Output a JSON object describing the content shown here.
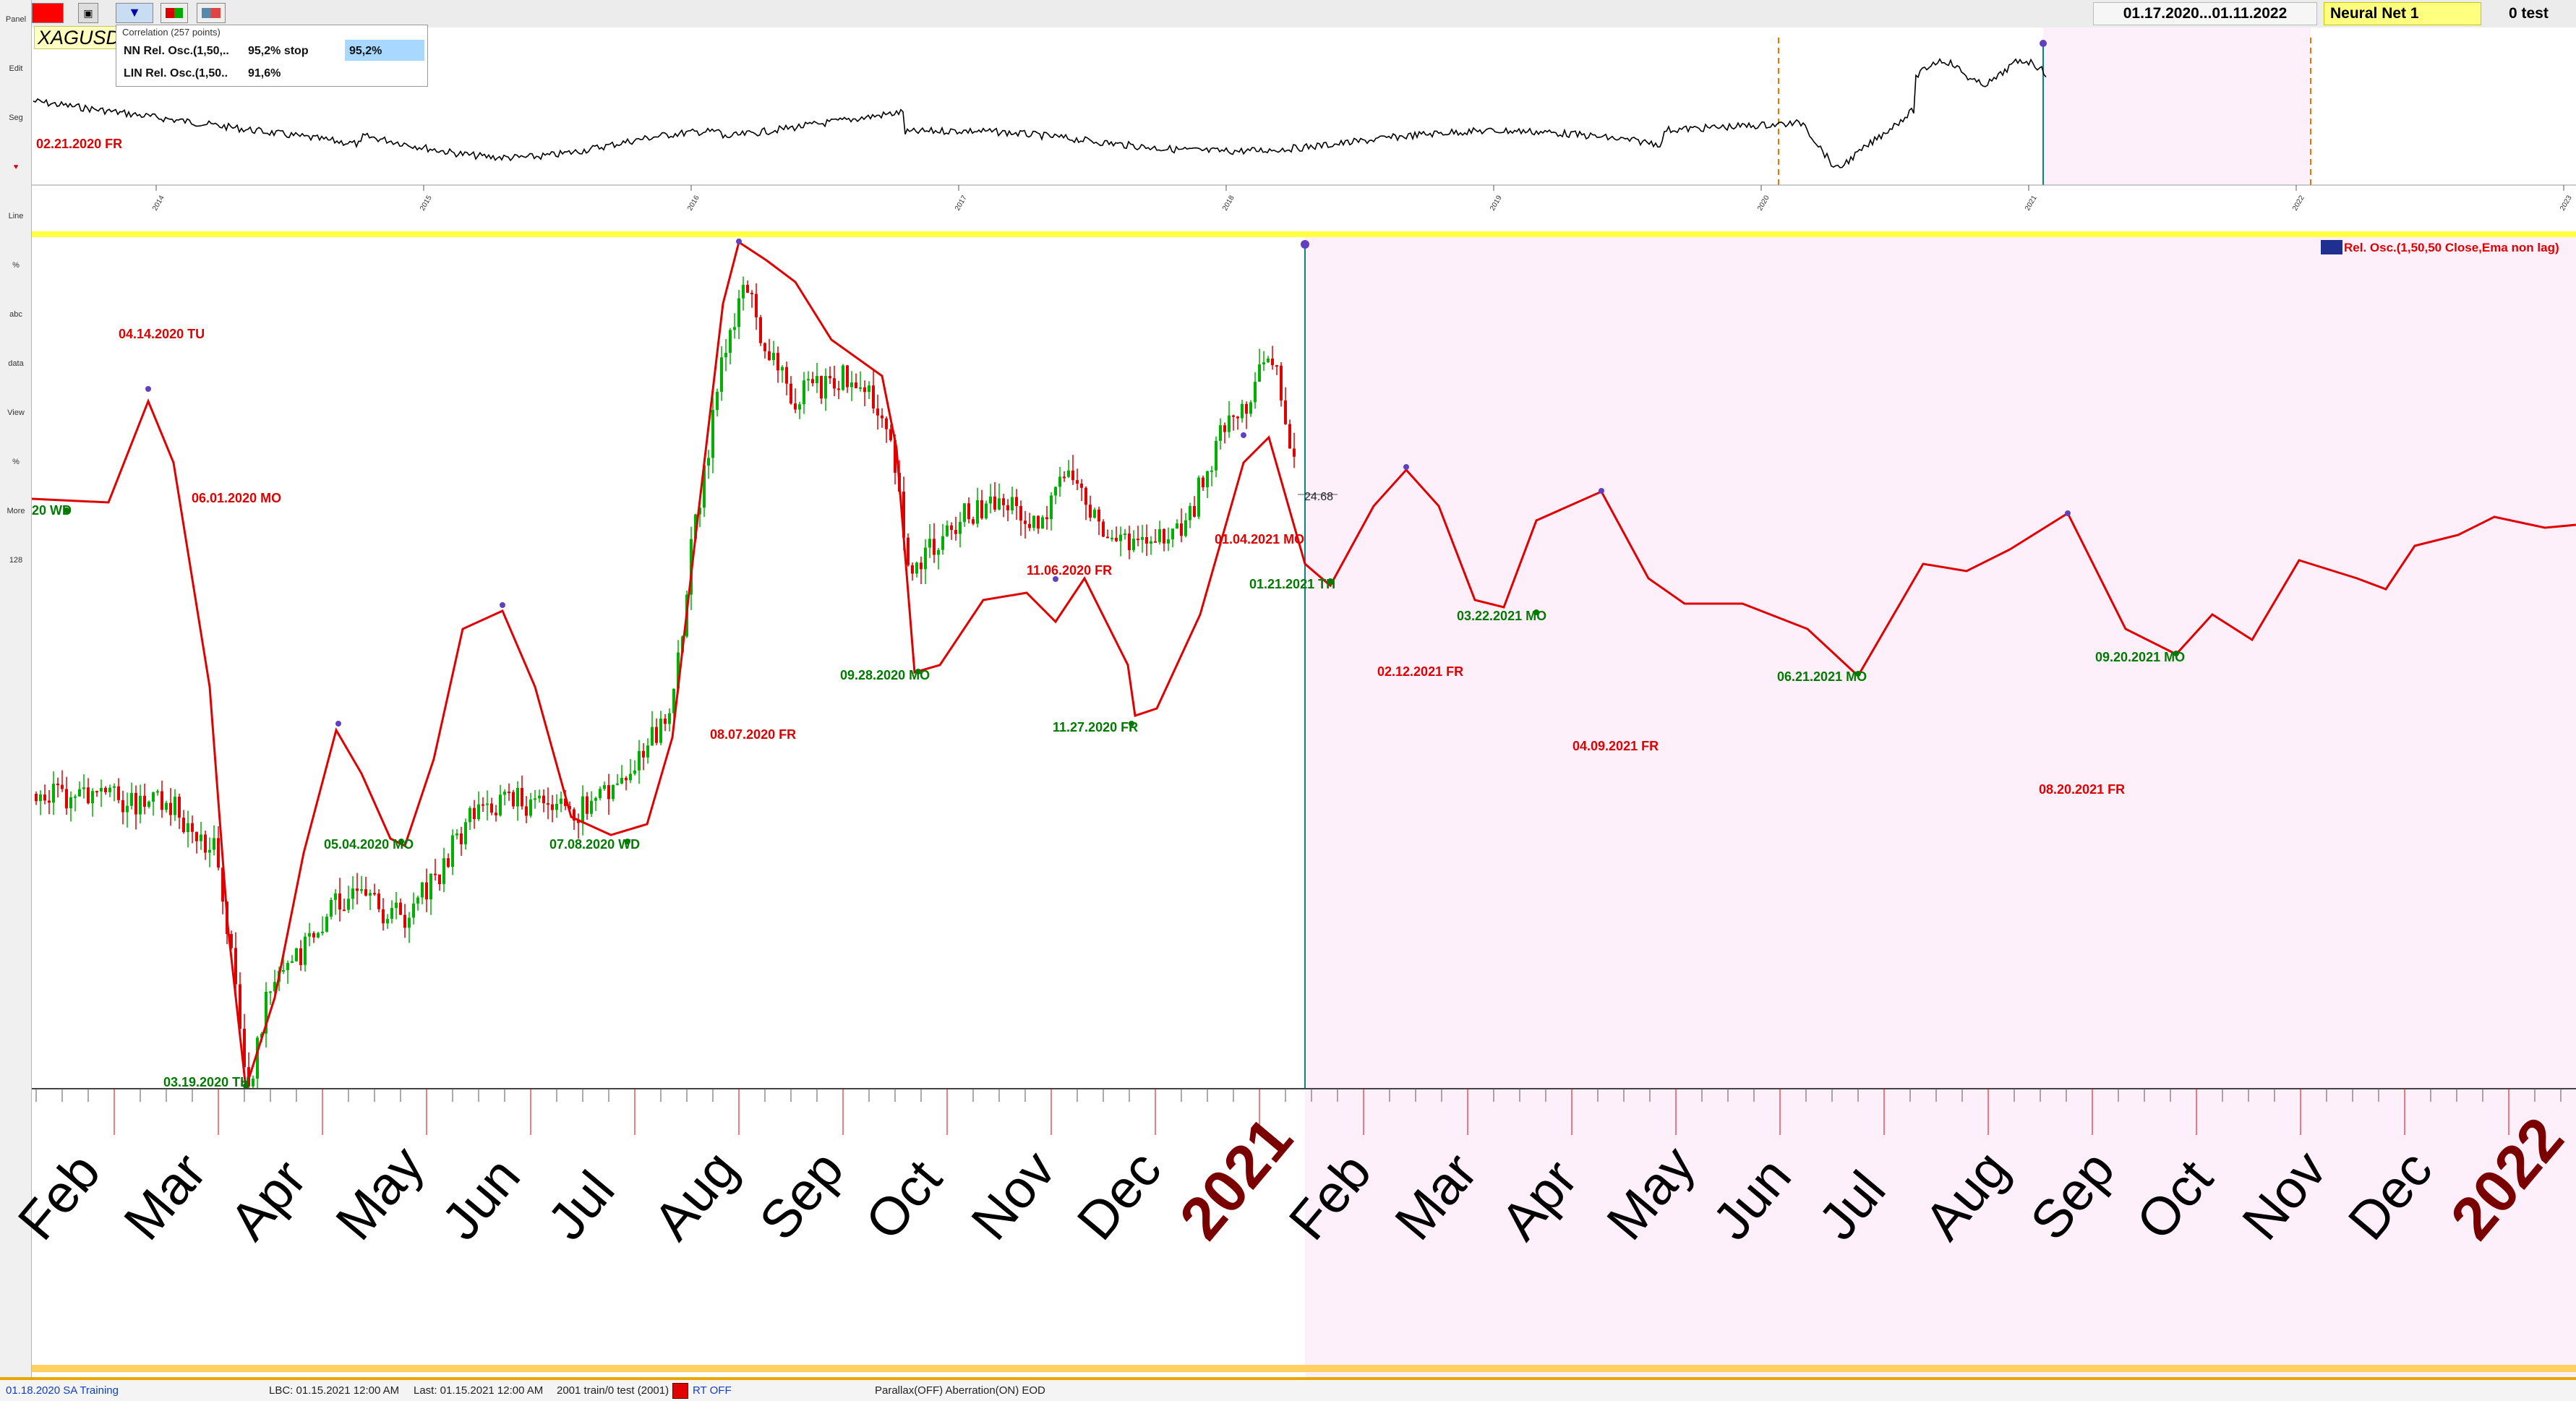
{
  "toolbar": {
    "date_range": "01.17.2020...01.11.2022",
    "model": "Neural Net  1",
    "test_label": "0 test"
  },
  "left_tools": [
    "Panel",
    "Edit",
    "Seg",
    "♥",
    "Line",
    "%",
    "abc",
    "data",
    "View",
    "%",
    "More",
    "128"
  ],
  "symbol": "XAGUSD1",
  "correlation": {
    "title": "Correlation (257 points)",
    "rows": [
      {
        "name": "NN Rel. Osc.(1,50,..",
        "value": "95,2% stop",
        "badge": "95,2%"
      },
      {
        "name": "LIN Rel. Osc.(1,50..",
        "value": "91,6%",
        "badge": ""
      }
    ]
  },
  "overview_years": [
    "2014",
    "2015",
    "2016",
    "2017",
    "2018",
    "2019",
    "2020",
    "2021",
    "2022",
    "2023"
  ],
  "indicator_label": "Rel. Osc.(1,50,50 Close,Ema non lag)",
  "price_label": "24.68",
  "month_labels": [
    "Feb",
    "Mar",
    "Apr",
    "May",
    "Jun",
    "Jul",
    "Aug",
    "Sep",
    "Oct",
    "Nov",
    "Dec",
    "2021",
    "Feb",
    "Mar",
    "Apr",
    "May",
    "Jun",
    "Jul",
    "Aug",
    "Sep",
    "Oct",
    "Nov",
    "Dec",
    "2022"
  ],
  "chart_data": {
    "type": "line",
    "series": [
      {
        "name": "Rel. Osc.(1,50,50 Close,Ema non lag)"
      }
    ],
    "peaks": [
      "02.21.2020 FR",
      "04.14.2020 TU",
      "06.01.2020 MO",
      "08.07.2020 FR",
      "11.06.2020 FR",
      "01.04.2021 MO",
      "02.12.2021 FR",
      "04.09.2021 FR",
      "08.20.2021 FR"
    ],
    "troughs": [
      "20 WD",
      "03.19.2020 TH",
      "05.04.2020 MO",
      "07.08.2020 WD",
      "09.28.2020 MO",
      "11.27.2020 FR",
      "01.21.2021 TH",
      "03.22.2021 MO",
      "06.21.2021 MO",
      "09.20.2021 MO"
    ]
  },
  "status": {
    "mode": "01.18.2020 SA  Training",
    "lbc": "LBC: 01.15.2021  12:00 AM",
    "last": "Last: 01.15.2021  12:00 AM",
    "train": "2001 train/0 test (2001)",
    "rt": "RT OFF",
    "flags": "Parallax(OFF) Aberration(ON) EOD"
  },
  "colors": {
    "peak": "#e00000",
    "trough": "#007a00",
    "up_candle": "#00b000",
    "down_candle": "#e00000",
    "forecast_bg": "#fdf0fb",
    "year": "#7a0000"
  }
}
